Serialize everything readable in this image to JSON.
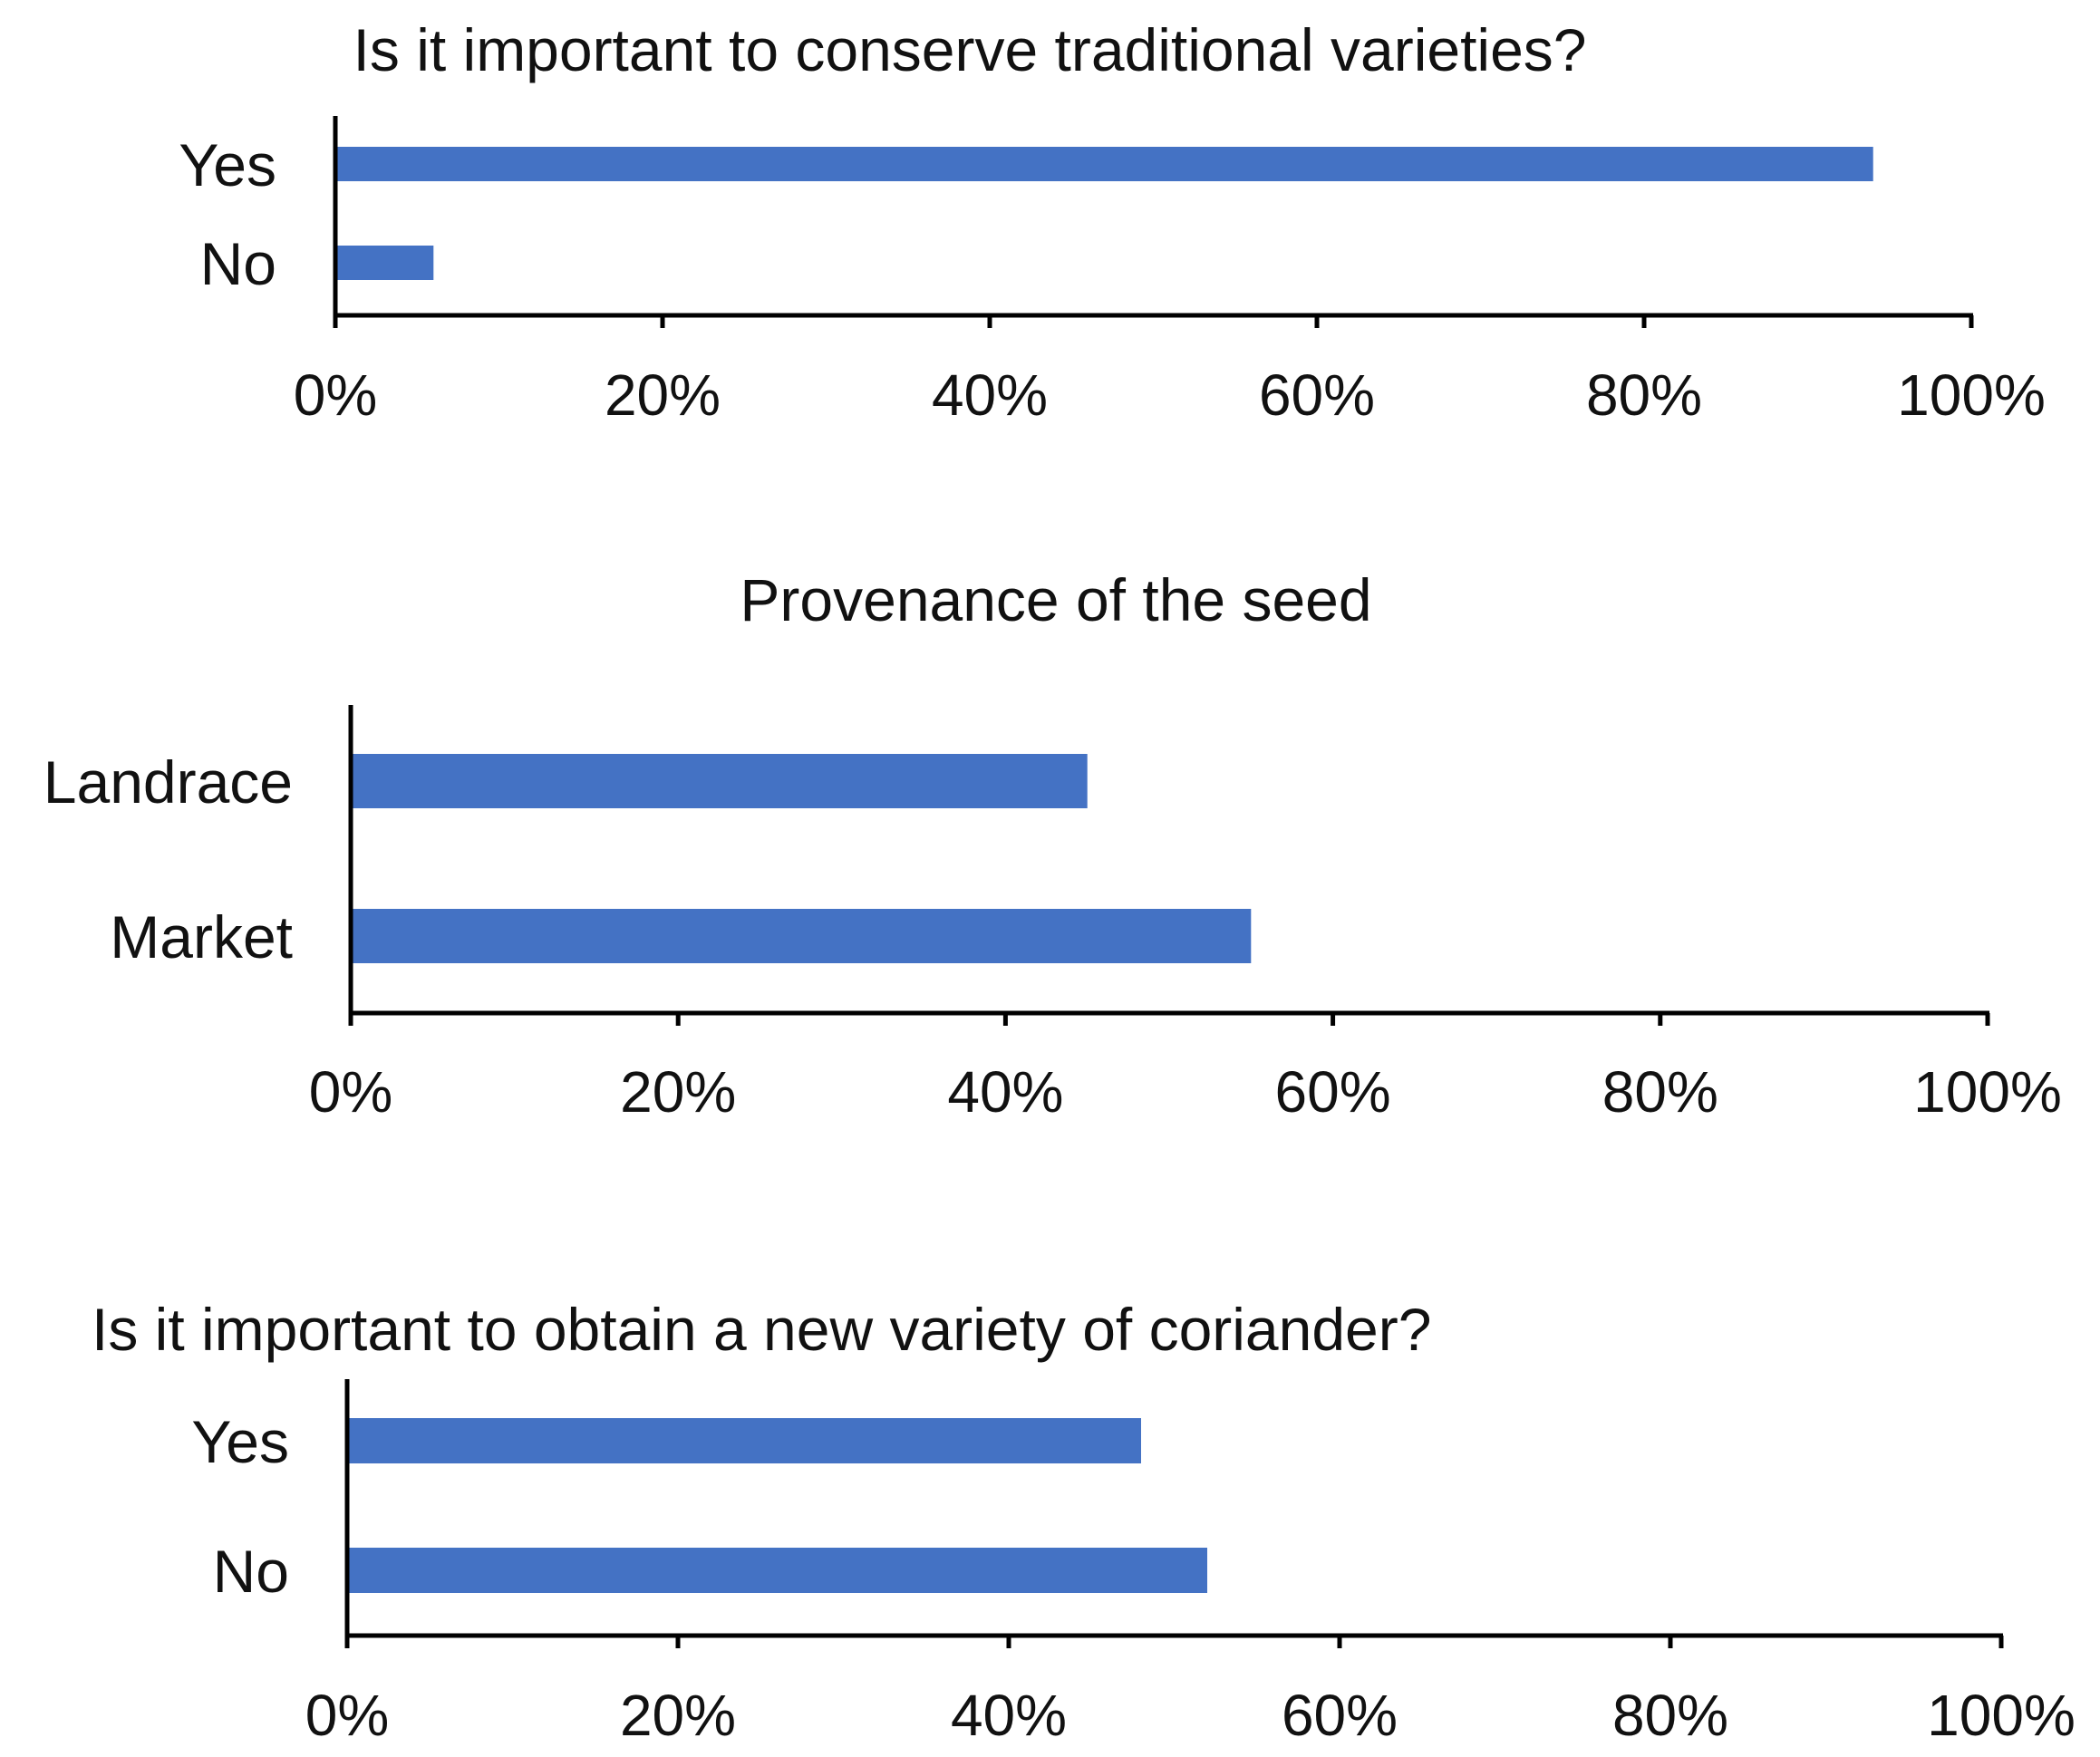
{
  "chart_data": [
    {
      "type": "bar",
      "orientation": "horizontal",
      "title": "Is it important to conserve traditional varieties?",
      "categories": [
        "Yes",
        "No"
      ],
      "values": [
        94,
        6
      ],
      "unit": "%",
      "xlim": [
        0,
        100
      ],
      "xticks": [
        "0%",
        "20%",
        "40%",
        "60%",
        "80%",
        "100%"
      ],
      "grid": false,
      "bar_color": "#4472C4"
    },
    {
      "type": "bar",
      "orientation": "horizontal",
      "title": "Provenance of the seed",
      "categories": [
        "Landrace",
        "Market"
      ],
      "values": [
        45,
        55
      ],
      "unit": "%",
      "xlim": [
        0,
        100
      ],
      "xticks": [
        "0%",
        "20%",
        "40%",
        "60%",
        "80%",
        "100%"
      ],
      "grid": false,
      "bar_color": "#4472C4"
    },
    {
      "type": "bar",
      "orientation": "horizontal",
      "title": "Is it important to obtain a new variety of coriander?",
      "categories": [
        "Yes",
        "No"
      ],
      "values": [
        48,
        52
      ],
      "unit": "%",
      "xlim": [
        0,
        100
      ],
      "xticks": [
        "0%",
        "20%",
        "40%",
        "60%",
        "80%",
        "100%"
      ],
      "grid": false,
      "bar_color": "#4472C4"
    }
  ]
}
